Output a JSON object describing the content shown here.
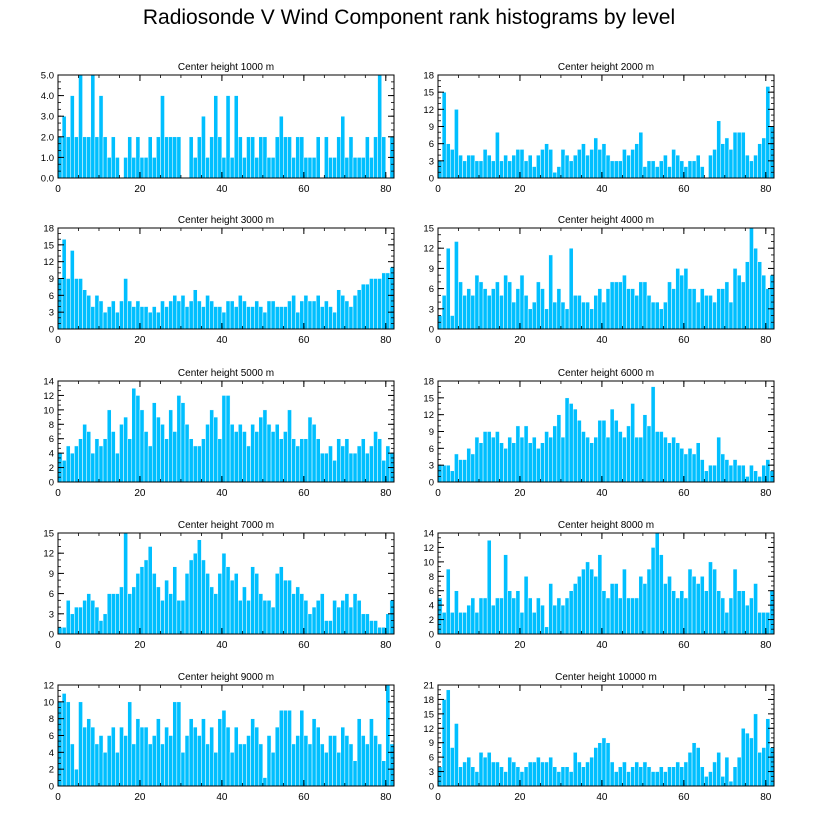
{
  "title": "Radiosonde V Wind Component rank histograms by level",
  "colors": {
    "bar": "#00BFFF",
    "bar_edge": "#ffffff",
    "axis": "#000000",
    "background": "#ffffff"
  },
  "chart_data": [
    {
      "type": "bar",
      "title": "Center height 1000 m",
      "xlim": [
        0,
        82
      ],
      "xticks": [
        0,
        20,
        40,
        60,
        80
      ],
      "ylim": [
        0,
        5
      ],
      "yticks": [
        0,
        1,
        2,
        3,
        4,
        5
      ],
      "ytick_labels": [
        "0.0",
        "1.0",
        "2.0",
        "3.0",
        "4.0",
        "5.0"
      ],
      "values": [
        2,
        3,
        2,
        4,
        2,
        5,
        2,
        2,
        5,
        2,
        4,
        2,
        1,
        2,
        1,
        0,
        1,
        2,
        1,
        2,
        1,
        1,
        2,
        1,
        2,
        4,
        2,
        2,
        2,
        2,
        0,
        0,
        2,
        1,
        2,
        3,
        1,
        2,
        4,
        2,
        1,
        4,
        1,
        4,
        2,
        1,
        2,
        2,
        1,
        2,
        2,
        1,
        1,
        2,
        3,
        2,
        2,
        1,
        2,
        2,
        1,
        1,
        1,
        2,
        0,
        2,
        1,
        1,
        2,
        3,
        1,
        2,
        1,
        1,
        1,
        2,
        1,
        2,
        5,
        2,
        0,
        2
      ]
    },
    {
      "type": "bar",
      "title": "Center height 2000 m",
      "xlim": [
        0,
        82
      ],
      "xticks": [
        0,
        20,
        40,
        60,
        80
      ],
      "ylim": [
        0,
        18
      ],
      "yticks": [
        0,
        3,
        6,
        9,
        12,
        15,
        18
      ],
      "ytick_labels": [
        "0",
        "3",
        "6",
        "9",
        "12",
        "15",
        "18"
      ],
      "values": [
        3,
        15,
        6,
        5,
        12,
        4,
        3,
        4,
        4,
        3,
        3,
        5,
        4,
        3,
        8,
        3,
        4,
        3,
        4,
        5,
        5,
        3,
        4,
        2,
        4,
        5,
        6,
        5,
        1,
        2,
        5,
        4,
        3,
        4,
        5,
        6,
        4,
        5,
        7,
        5,
        6,
        4,
        3,
        3,
        3,
        5,
        4,
        5,
        6,
        8,
        2,
        3,
        3,
        2,
        3,
        4,
        2,
        5,
        4,
        3,
        2,
        3,
        3,
        4,
        2,
        0,
        4,
        5,
        10,
        6,
        7,
        5,
        8,
        8,
        8,
        4,
        3,
        4,
        6,
        7,
        16,
        9
      ]
    },
    {
      "type": "bar",
      "title": "Center height 3000 m",
      "xlim": [
        0,
        82
      ],
      "xticks": [
        0,
        20,
        40,
        60,
        80
      ],
      "ylim": [
        0,
        18
      ],
      "yticks": [
        0,
        3,
        6,
        9,
        12,
        15,
        18
      ],
      "ytick_labels": [
        "0",
        "3",
        "6",
        "9",
        "12",
        "15",
        "18"
      ],
      "values": [
        9,
        16,
        9,
        14,
        9,
        9,
        7,
        6,
        4,
        6,
        5,
        3,
        4,
        5,
        3,
        5,
        9,
        5,
        4,
        5,
        4,
        4,
        3,
        4,
        3,
        5,
        4,
        5,
        6,
        5,
        6,
        4,
        5,
        7,
        5,
        4,
        6,
        5,
        4,
        4,
        3,
        5,
        5,
        4,
        6,
        5,
        4,
        4,
        5,
        4,
        3,
        5,
        5,
        4,
        4,
        4,
        5,
        6,
        3,
        5,
        6,
        5,
        5,
        6,
        4,
        5,
        4,
        3,
        7,
        6,
        5,
        4,
        6,
        7,
        8,
        8,
        9,
        9,
        9,
        10,
        10,
        11
      ]
    },
    {
      "type": "bar",
      "title": "Center height 4000 m",
      "xlim": [
        0,
        82
      ],
      "xticks": [
        0,
        20,
        40,
        60,
        80
      ],
      "ylim": [
        0,
        15
      ],
      "yticks": [
        0,
        3,
        6,
        9,
        12,
        15
      ],
      "ytick_labels": [
        "0",
        "3",
        "6",
        "9",
        "12",
        "15"
      ],
      "values": [
        2,
        5,
        12,
        2,
        13,
        7,
        5,
        6,
        5,
        8,
        7,
        6,
        5,
        6,
        7,
        5,
        8,
        7,
        4,
        6,
        8,
        5,
        3,
        4,
        7,
        6,
        3,
        11,
        4,
        6,
        4,
        3,
        12,
        5,
        5,
        4,
        4,
        3,
        5,
        6,
        4,
        6,
        7,
        7,
        7,
        8,
        6,
        6,
        5,
        7,
        7,
        5,
        4,
        4,
        3,
        4,
        7,
        6,
        9,
        8,
        9,
        6,
        6,
        4,
        6,
        5,
        5,
        4,
        6,
        6,
        7,
        4,
        9,
        8,
        7,
        10,
        15,
        12,
        10,
        8,
        6,
        8
      ]
    },
    {
      "type": "bar",
      "title": "Center height 5000 m",
      "xlim": [
        0,
        82
      ],
      "xticks": [
        0,
        20,
        40,
        60,
        80
      ],
      "ylim": [
        0,
        14
      ],
      "yticks": [
        0,
        2,
        4,
        6,
        8,
        10,
        12,
        14
      ],
      "ytick_labels": [
        "0",
        "2",
        "4",
        "6",
        "8",
        "10",
        "12",
        "14"
      ],
      "values": [
        4,
        3,
        5,
        4,
        5,
        6,
        8,
        7,
        4,
        6,
        5,
        6,
        10,
        7,
        4,
        8,
        9,
        6,
        13,
        12,
        10,
        7,
        5,
        11,
        9,
        8,
        6,
        10,
        7,
        12,
        11,
        8,
        6,
        5,
        5,
        6,
        8,
        10,
        9,
        6,
        12,
        12,
        8,
        7,
        8,
        7,
        5,
        8,
        7,
        9,
        10,
        8,
        7,
        8,
        6,
        7,
        10,
        6,
        5,
        6,
        6,
        9,
        8,
        6,
        4,
        4,
        5,
        3,
        6,
        5,
        6,
        4,
        4,
        5,
        6,
        4,
        5,
        7,
        6,
        3,
        5,
        4
      ]
    },
    {
      "type": "bar",
      "title": "Center height 6000 m",
      "xlim": [
        0,
        82
      ],
      "xticks": [
        0,
        20,
        40,
        60,
        80
      ],
      "ylim": [
        0,
        18
      ],
      "yticks": [
        0,
        3,
        6,
        9,
        12,
        15,
        18
      ],
      "ytick_labels": [
        "0",
        "3",
        "6",
        "9",
        "12",
        "15",
        "18"
      ],
      "values": [
        3,
        3,
        3,
        2,
        5,
        4,
        4,
        6,
        5,
        8,
        7,
        9,
        9,
        8,
        9,
        7,
        6,
        8,
        7,
        10,
        8,
        10,
        7,
        8,
        6,
        7,
        9,
        8,
        10,
        12,
        8,
        15,
        14,
        13,
        11,
        9,
        8,
        7,
        8,
        11,
        11,
        8,
        13,
        11,
        9,
        8,
        10,
        14,
        8,
        8,
        12,
        10,
        17,
        9,
        9,
        8,
        7,
        8,
        7,
        6,
        5,
        6,
        5,
        7,
        4,
        2,
        3,
        3,
        8,
        5,
        4,
        3,
        4,
        3,
        3,
        1,
        3,
        2,
        1,
        3,
        4,
        2
      ]
    },
    {
      "type": "bar",
      "title": "Center height 7000 m",
      "xlim": [
        0,
        82
      ],
      "xticks": [
        0,
        20,
        40,
        60,
        80
      ],
      "ylim": [
        0,
        15
      ],
      "yticks": [
        0,
        3,
        6,
        9,
        12,
        15
      ],
      "ytick_labels": [
        "0",
        "3",
        "6",
        "9",
        "12",
        "15"
      ],
      "values": [
        1,
        1,
        5,
        3,
        4,
        4,
        5,
        6,
        5,
        4,
        2,
        3,
        6,
        6,
        6,
        7,
        15,
        6,
        7,
        9,
        10,
        11,
        13,
        9,
        7,
        5,
        8,
        6,
        10,
        5,
        5,
        9,
        11,
        12,
        14,
        11,
        9,
        7,
        6,
        9,
        12,
        10,
        8,
        9,
        5,
        7,
        5,
        10,
        9,
        6,
        5,
        5,
        4,
        9,
        10,
        8,
        8,
        6,
        7,
        6,
        5,
        3,
        4,
        5,
        6,
        2,
        2,
        5,
        4,
        5,
        6,
        4,
        6,
        5,
        3,
        3,
        2,
        2,
        1,
        1,
        3,
        5
      ]
    },
    {
      "type": "bar",
      "title": "Center height 8000 m",
      "xlim": [
        0,
        82
      ],
      "xticks": [
        0,
        20,
        40,
        60,
        80
      ],
      "ylim": [
        0,
        14
      ],
      "yticks": [
        0,
        2,
        4,
        6,
        8,
        10,
        12,
        14
      ],
      "ytick_labels": [
        "0",
        "2",
        "4",
        "6",
        "8",
        "10",
        "12",
        "14"
      ],
      "values": [
        5,
        3,
        9,
        3,
        6,
        3,
        3,
        4,
        5,
        3,
        5,
        5,
        13,
        4,
        5,
        5,
        11,
        6,
        5,
        6,
        3,
        8,
        5,
        3,
        5,
        4,
        1,
        7,
        4,
        5,
        4,
        5,
        6,
        7,
        8,
        9,
        10,
        9,
        8,
        11,
        6,
        5,
        7,
        7,
        5,
        9,
        5,
        5,
        5,
        8,
        7,
        9,
        12,
        14,
        11,
        7,
        8,
        6,
        5,
        6,
        5,
        9,
        8,
        7,
        8,
        6,
        10,
        9,
        6,
        5,
        3,
        5,
        9,
        6,
        6,
        4,
        5,
        7,
        3,
        3,
        3,
        6
      ]
    },
    {
      "type": "bar",
      "title": "Center height 9000 m",
      "xlim": [
        0,
        82
      ],
      "xticks": [
        0,
        20,
        40,
        60,
        80
      ],
      "ylim": [
        0,
        12
      ],
      "yticks": [
        0,
        2,
        4,
        6,
        8,
        10,
        12
      ],
      "ytick_labels": [
        "0",
        "2",
        "4",
        "6",
        "8",
        "10",
        "12"
      ],
      "values": [
        10,
        11,
        10,
        5,
        2,
        10,
        7,
        8,
        7,
        5,
        6,
        4,
        6,
        7,
        4,
        7,
        6,
        10,
        5,
        8,
        7,
        7,
        5,
        6,
        8,
        5,
        7,
        6,
        10,
        10,
        4,
        6,
        8,
        7,
        6,
        8,
        5,
        7,
        4,
        8,
        9,
        7,
        4,
        7,
        5,
        5,
        6,
        8,
        7,
        5,
        1,
        6,
        4,
        7,
        9,
        9,
        9,
        5,
        6,
        9,
        6,
        5,
        8,
        7,
        5,
        4,
        6,
        6,
        4,
        7,
        6,
        5,
        3,
        8,
        6,
        5,
        8,
        6,
        5,
        3,
        12,
        5
      ]
    },
    {
      "type": "bar",
      "title": "Center height 10000 m",
      "xlim": [
        0,
        82
      ],
      "xticks": [
        0,
        20,
        40,
        60,
        80
      ],
      "ylim": [
        0,
        21
      ],
      "yticks": [
        0,
        3,
        6,
        9,
        12,
        15,
        18,
        21
      ],
      "ytick_labels": [
        "0",
        "3",
        "6",
        "9",
        "12",
        "15",
        "18",
        "21"
      ],
      "values": [
        4,
        18,
        20,
        8,
        13,
        4,
        5,
        6,
        4,
        3,
        7,
        6,
        7,
        5,
        5,
        4,
        3,
        6,
        5,
        4,
        3,
        4,
        5,
        5,
        6,
        5,
        5,
        6,
        4,
        3,
        4,
        4,
        3,
        7,
        5,
        4,
        5,
        6,
        8,
        9,
        10,
        9,
        5,
        3,
        4,
        5,
        3,
        4,
        5,
        4,
        5,
        4,
        3,
        3,
        4,
        3,
        4,
        4,
        5,
        4,
        5,
        7,
        9,
        8,
        4,
        2,
        3,
        5,
        7,
        2,
        6,
        1,
        4,
        6,
        12,
        11,
        10,
        15,
        7,
        8,
        14,
        8
      ]
    }
  ]
}
